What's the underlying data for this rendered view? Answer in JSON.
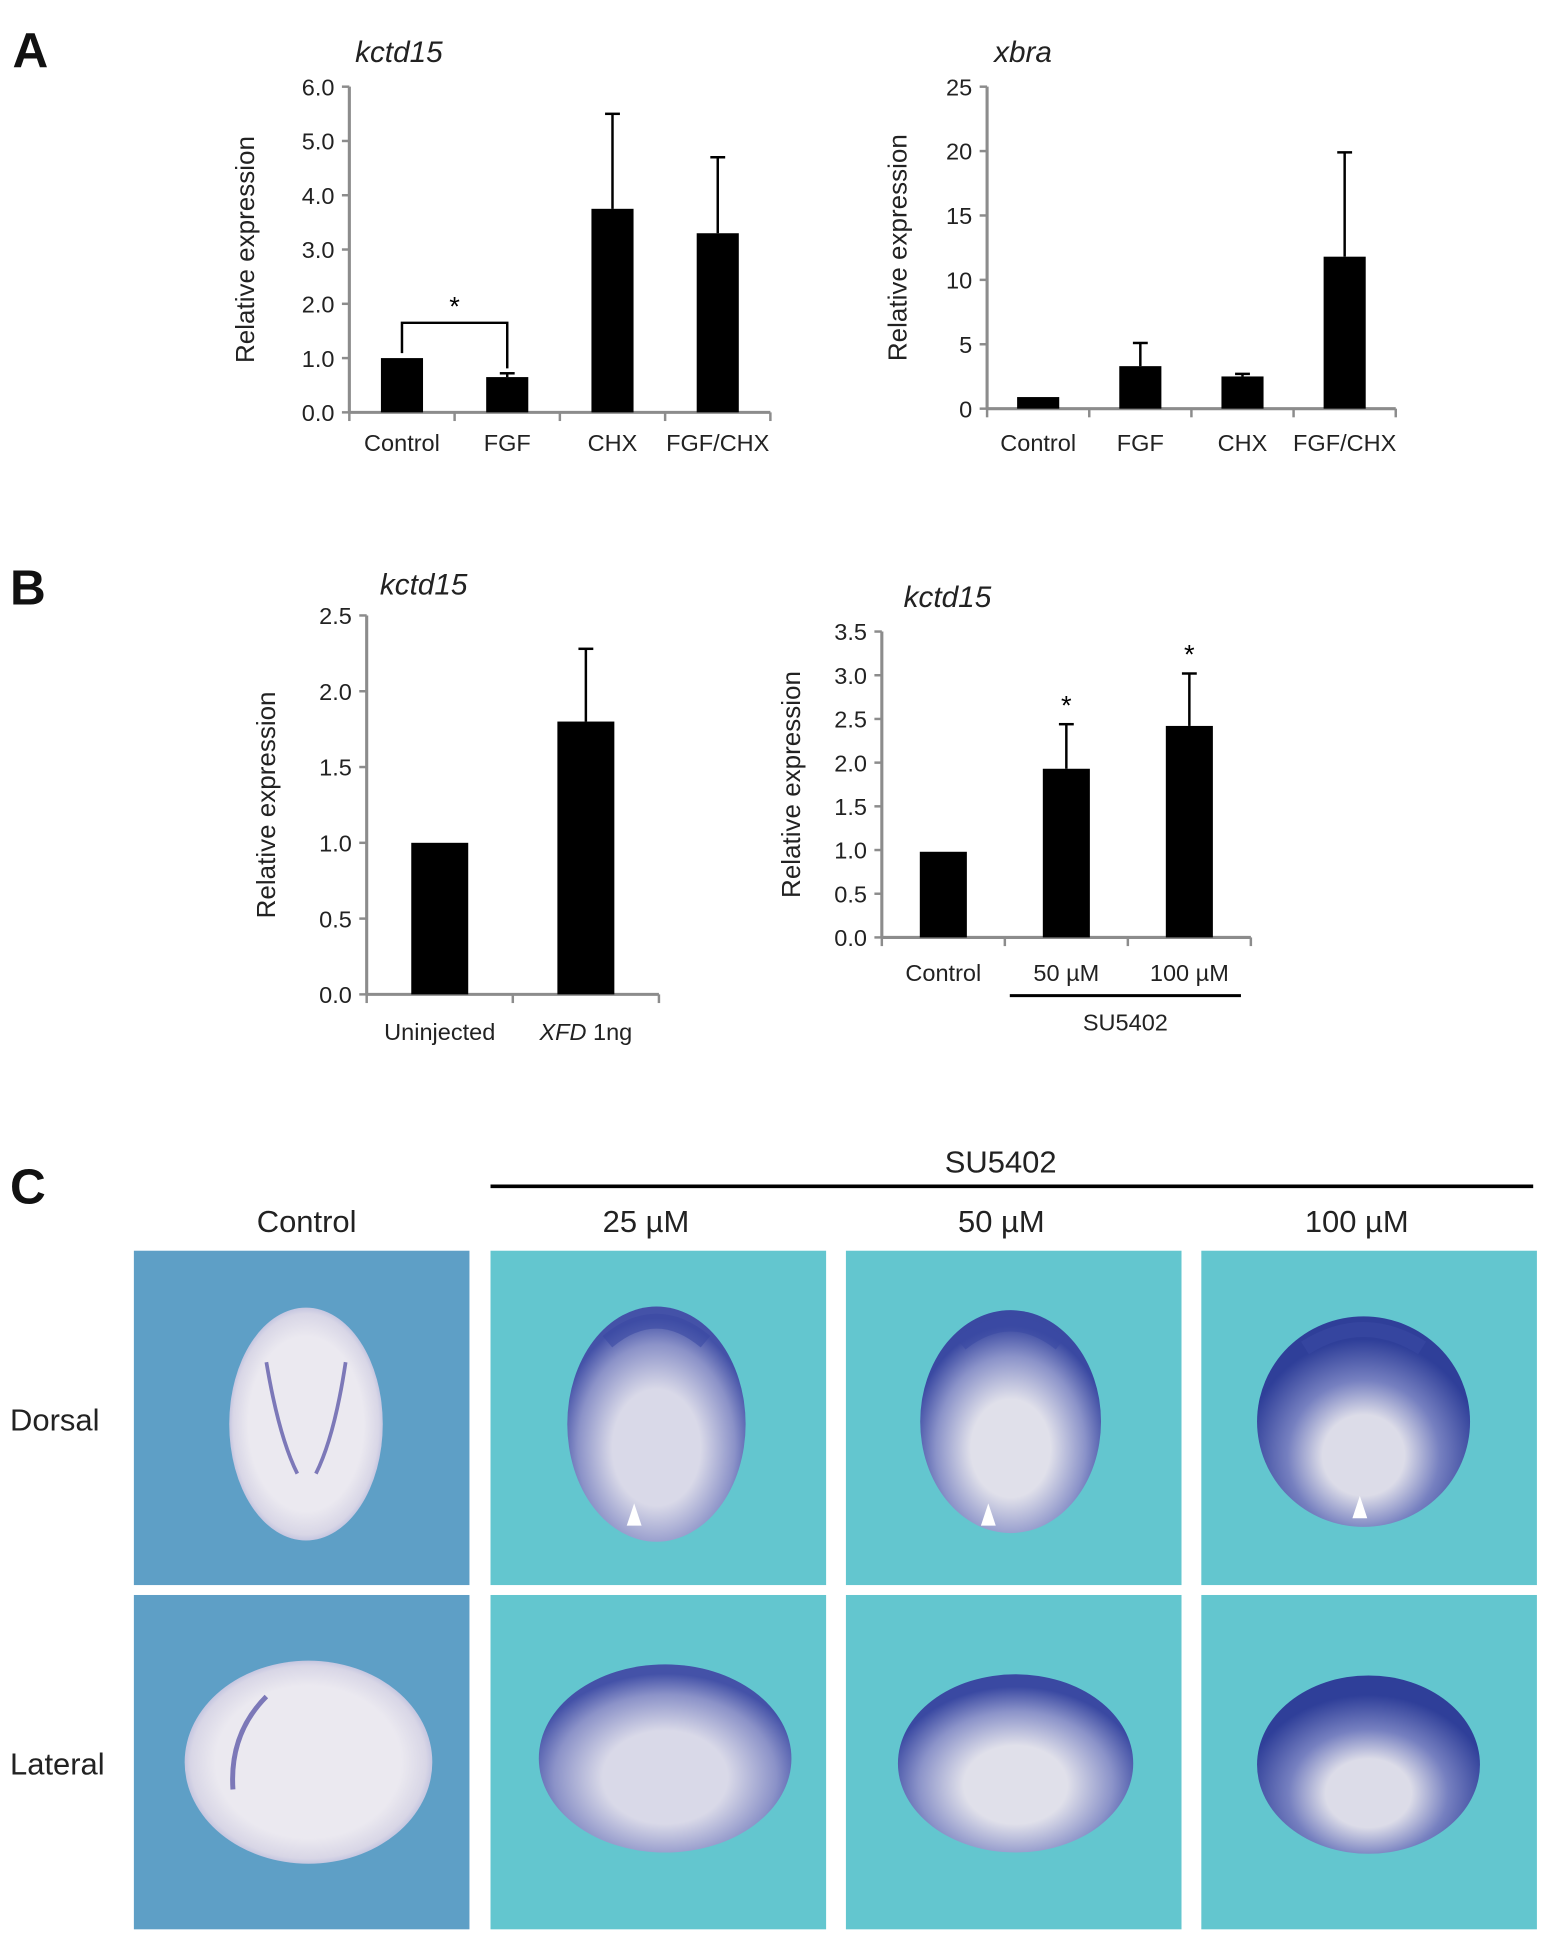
{
  "panels": {
    "a": "A",
    "b": "B",
    "c": "C"
  },
  "chart_data": [
    {
      "id": "a1",
      "type": "bar",
      "title": "kctd15",
      "ylabel": "Relative expression",
      "categories": [
        "Control",
        "FGF",
        "CHX",
        "FGF/CHX"
      ],
      "values": [
        1.0,
        0.65,
        3.75,
        3.3
      ],
      "errors": [
        1.0,
        0.72,
        5.5,
        4.7
      ],
      "ylim": [
        0,
        6
      ],
      "yticks": [
        "0.0",
        "1.0",
        "2.0",
        "3.0",
        "4.0",
        "5.0",
        "6.0"
      ],
      "ytick_values": [
        0,
        1,
        2,
        3,
        4,
        5,
        6
      ],
      "significance": [
        {
          "between": [
            "Control",
            "FGF"
          ],
          "label": "*",
          "style": "bracket"
        }
      ],
      "bar_color": "#000000",
      "axis_color": "#8c8c8c"
    },
    {
      "id": "a2",
      "type": "bar",
      "title": "xbra",
      "ylabel": "Relative expression",
      "categories": [
        "Control",
        "FGF",
        "CHX",
        "FGF/CHX"
      ],
      "values": [
        0.9,
        3.3,
        2.5,
        11.8
      ],
      "errors": [
        0.9,
        5.1,
        2.7,
        19.9
      ],
      "ylim": [
        0,
        25
      ],
      "yticks": [
        "0",
        "5",
        "10",
        "15",
        "20",
        "25"
      ],
      "ytick_values": [
        0,
        5,
        10,
        15,
        20,
        25
      ],
      "bar_color": "#000000",
      "axis_color": "#8c8c8c"
    },
    {
      "id": "b1",
      "type": "bar",
      "title": "kctd15",
      "ylabel": "Relative expression",
      "categories": [
        "Uninjected",
        "XFD 1ng"
      ],
      "category_italic_prefix": [
        "",
        "XFD"
      ],
      "values": [
        1.0,
        1.8
      ],
      "errors": [
        1.0,
        2.28
      ],
      "ylim": [
        0,
        2.5
      ],
      "yticks": [
        "0.0",
        "0.5",
        "1.0",
        "1.5",
        "2.0",
        "2.5"
      ],
      "ytick_values": [
        0,
        0.5,
        1,
        1.5,
        2,
        2.5
      ],
      "bar_color": "#000000",
      "axis_color": "#8c8c8c"
    },
    {
      "id": "b2",
      "type": "bar",
      "title": "kctd15",
      "ylabel": "Relative expression",
      "categories": [
        "Control",
        "50 µM",
        "100 µM"
      ],
      "values": [
        0.98,
        1.93,
        2.42
      ],
      "errors": [
        0.98,
        2.44,
        3.02
      ],
      "ylim": [
        0,
        3.5
      ],
      "yticks": [
        "0.0",
        "0.5",
        "1.0",
        "1.5",
        "2.0",
        "2.5",
        "3.0",
        "3.5"
      ],
      "ytick_values": [
        0,
        0.5,
        1,
        1.5,
        2,
        2.5,
        3,
        3.5
      ],
      "significance": [
        {
          "category": "50 µM",
          "label": "*",
          "style": "star"
        },
        {
          "category": "100 µM",
          "label": "*",
          "style": "star"
        }
      ],
      "group_label": {
        "label": "SU5402",
        "categories": [
          "50 µM",
          "100 µM"
        ]
      },
      "bar_color": "#000000",
      "axis_color": "#8c8c8c"
    }
  ],
  "panel_c": {
    "group_label": "SU5402",
    "columns": [
      "Control",
      "25 µM",
      "50 µM",
      "100 µM"
    ],
    "rows": [
      "Dorsal",
      "Lateral"
    ],
    "colors": {
      "control_bg": "#5e9fc6",
      "treated_bg": "#63c6cf",
      "embryo": "#e8e6ef",
      "stain": "#3b4aa3"
    }
  }
}
